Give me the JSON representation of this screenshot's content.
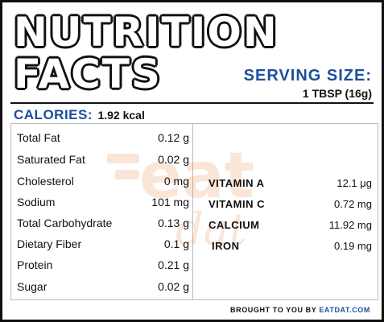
{
  "title": {
    "line1": "NUTRITION",
    "line2": "FACTS"
  },
  "serving": {
    "label": "SERVING SIZE:",
    "value": "1 TBSP (16g)"
  },
  "calories": {
    "label": "CALORIES:",
    "value": "1.92 kcal"
  },
  "nutrients": [
    {
      "name": "Total Fat",
      "value": "0.12 g"
    },
    {
      "name": "Saturated Fat",
      "value": "0.02 g"
    },
    {
      "name": "Cholesterol",
      "value": "0 mg"
    },
    {
      "name": "Sodium",
      "value": "101 mg"
    },
    {
      "name": "Total Carbohydrate",
      "value": "0.13 g"
    },
    {
      "name": "Dietary Fiber",
      "value": "0.1 g"
    },
    {
      "name": "Protein",
      "value": "0.21 g"
    },
    {
      "name": "Sugar",
      "value": "0.02 g"
    }
  ],
  "micronutrients": [
    {
      "name": "VITAMIN A",
      "value": "12.1 μg"
    },
    {
      "name": "VITAMIN C",
      "value": "0.72 mg"
    },
    {
      "name": "CALCIUM",
      "value": "11.92 mg"
    },
    {
      "name": "IRON",
      "value": "0.19 mg"
    }
  ],
  "footer": {
    "prefix": "BROUGHT TO YOU BY ",
    "brand": "EATDAT.COM"
  },
  "watermark": {
    "text": "eat",
    "subtext": "dat"
  },
  "colors": {
    "accent": "#1d4f9c",
    "watermark": "#e8732a",
    "text": "#111111"
  }
}
